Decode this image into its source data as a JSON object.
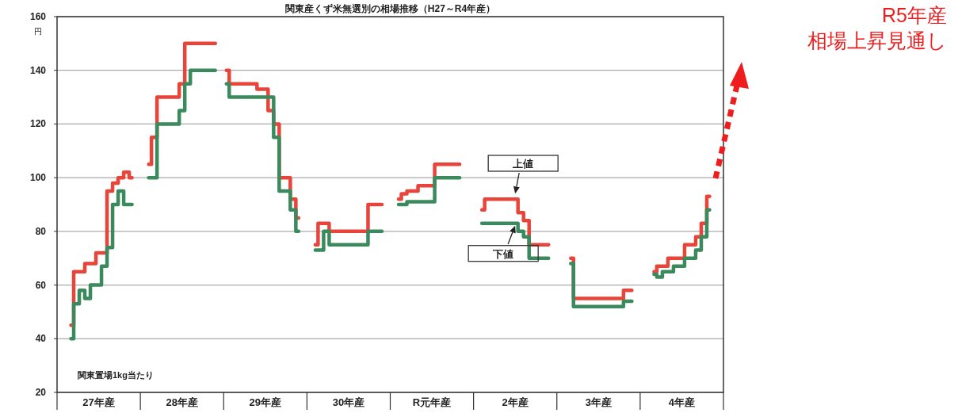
{
  "chart_data": {
    "type": "step",
    "title": "関東産くず米無選別の相場推移（H27～R4年産）",
    "ylabel": "円",
    "categories": [
      null,
      null,
      null,
      null,
      null,
      null,
      null,
      "27年産",
      null,
      null,
      null,
      null,
      null,
      null,
      null,
      null,
      null,
      null,
      null,
      null,
      null,
      null,
      "28年産",
      null,
      null,
      null,
      null,
      null,
      null,
      null,
      null,
      null,
      null,
      null,
      null,
      null,
      null,
      "29年産",
      null,
      null,
      null,
      null,
      null,
      null,
      null,
      null,
      null,
      null,
      null,
      null,
      null,
      null,
      "30年産",
      null,
      null,
      null,
      null,
      null,
      null,
      null,
      null,
      null,
      null,
      null,
      null,
      null,
      null,
      "R元年産",
      null,
      null,
      null,
      null,
      null,
      null,
      null,
      null,
      null,
      null,
      null,
      null,
      null,
      null,
      "2年産",
      null,
      null,
      null,
      null,
      null,
      null,
      null,
      null,
      null,
      null,
      null,
      null,
      null,
      null,
      "3年産",
      null,
      null,
      null,
      null,
      null,
      null,
      null,
      null,
      null,
      null,
      null,
      null,
      null,
      null,
      "4年産",
      null,
      null,
      null,
      null,
      null,
      null,
      null
    ],
    "ylim": [
      20,
      160
    ],
    "yticks": [
      20,
      40,
      60,
      80,
      100,
      120,
      140,
      160
    ],
    "grid": "y",
    "line_style": "solid",
    "series": [
      {
        "color": "#e8443a",
        "values": [
          null,
          null,
          45,
          65,
          65,
          68,
          68,
          72,
          72,
          95,
          98,
          100,
          102,
          100,
          null,
          null,
          105,
          115,
          130,
          130,
          130,
          130,
          135,
          150,
          150,
          150,
          150,
          150,
          150,
          null,
          140,
          135,
          135,
          135,
          135,
          135,
          133,
          133,
          125,
          120,
          100,
          100,
          92,
          85,
          null,
          null,
          75,
          83,
          83,
          80,
          80,
          80,
          80,
          80,
          80,
          80,
          90,
          90,
          90,
          null,
          null,
          92,
          94,
          95,
          95,
          97,
          97,
          97,
          105,
          105,
          105,
          105,
          105,
          null,
          null,
          null,
          88,
          92,
          92,
          92,
          92,
          92,
          92,
          87,
          84,
          75,
          75,
          75,
          75,
          null,
          null,
          null,
          70,
          55,
          55,
          55,
          55,
          55,
          55,
          55,
          55,
          55,
          58,
          58,
          null,
          null,
          null,
          65,
          67,
          67,
          70,
          70,
          70,
          75,
          75,
          78,
          83,
          93,
          null,
          null
        ]
      },
      {
        "color": "#3a8a5e",
        "values": [
          null,
          null,
          40,
          53,
          58,
          55,
          60,
          60,
          67,
          74,
          90,
          95,
          90,
          90,
          null,
          null,
          100,
          100,
          120,
          120,
          120,
          120,
          125,
          135,
          140,
          140,
          140,
          140,
          140,
          null,
          135,
          130,
          130,
          130,
          130,
          130,
          130,
          130,
          130,
          115,
          95,
          95,
          88,
          80,
          null,
          null,
          73,
          73,
          80,
          75,
          75,
          75,
          75,
          75,
          75,
          75,
          80,
          80,
          80,
          null,
          null,
          90,
          90,
          91,
          91,
          91,
          91,
          91,
          100,
          100,
          100,
          100,
          100,
          null,
          null,
          null,
          83,
          83,
          83,
          83,
          83,
          83,
          83,
          80,
          78,
          70,
          70,
          70,
          70,
          null,
          null,
          null,
          68,
          52,
          52,
          52,
          52,
          52,
          52,
          52,
          52,
          52,
          54,
          54,
          null,
          null,
          null,
          64,
          63,
          65,
          65,
          67,
          67,
          70,
          70,
          73,
          78,
          88,
          null,
          null
        ]
      }
    ],
    "annotations": [
      {
        "text": "上値",
        "x": "2年産",
        "y": 92
      },
      {
        "text": "下値",
        "x": "2年産",
        "y": 83
      },
      "関東置場1kg当たり",
      "R5年産",
      "相場上昇見通し"
    ]
  }
}
